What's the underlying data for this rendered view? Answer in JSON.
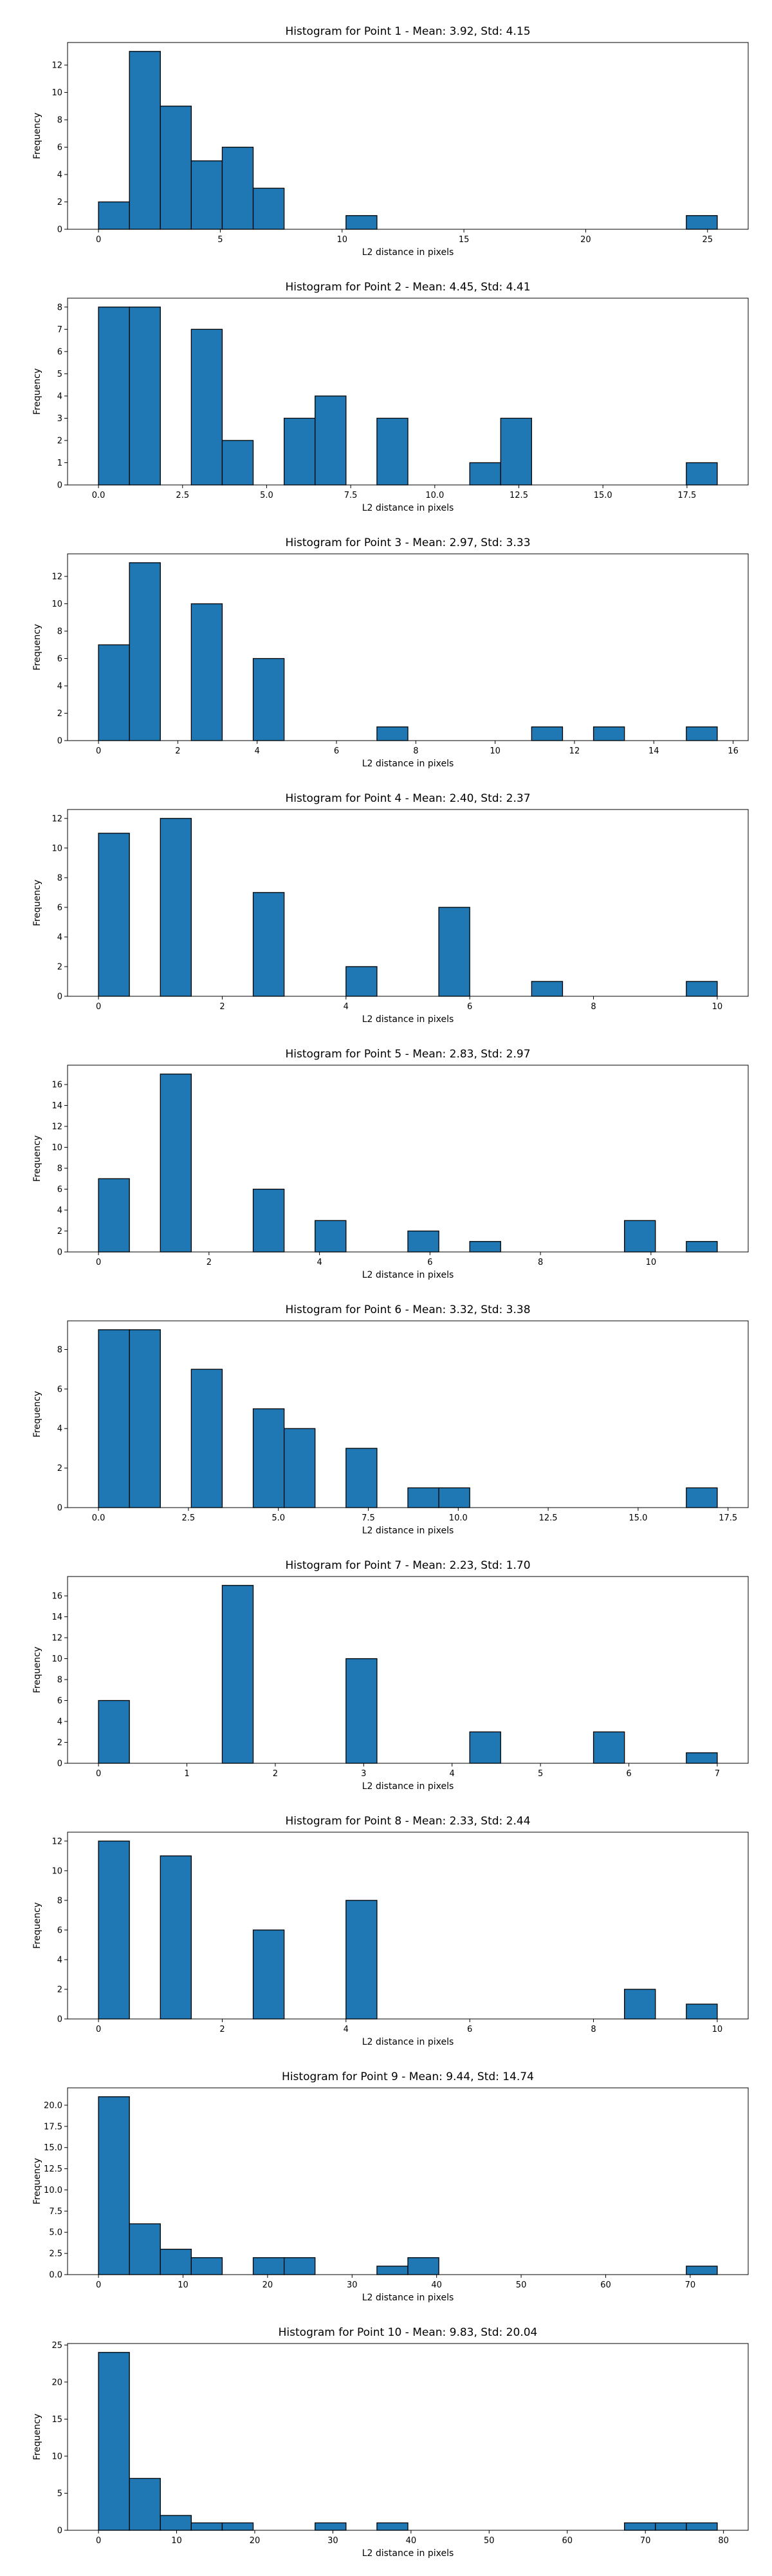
{
  "chart_data": [
    {
      "type": "bar",
      "title": "Histogram for Point 1 - Mean: 3.92, Std: 4.15",
      "xlabel": "L2 distance in pixels",
      "ylabel": "Frequency",
      "xlim": [
        -1.27,
        26.67
      ],
      "ylim": [
        0,
        13.65
      ],
      "xticks": [
        0,
        5,
        10,
        15,
        20,
        25
      ],
      "xtick_labels": [
        "0",
        "5",
        "10",
        "15",
        "20",
        "25"
      ],
      "yticks": [
        0,
        2,
        4,
        6,
        8,
        10,
        12
      ],
      "ytick_labels": [
        "0",
        "2",
        "4",
        "6",
        "8",
        "10",
        "12"
      ],
      "bins": [
        {
          "x0": 0.0,
          "x1": 1.27,
          "count": 2
        },
        {
          "x0": 1.27,
          "x1": 2.54,
          "count": 13
        },
        {
          "x0": 2.54,
          "x1": 3.81,
          "count": 9
        },
        {
          "x0": 3.81,
          "x1": 5.08,
          "count": 5
        },
        {
          "x0": 5.08,
          "x1": 6.35,
          "count": 6
        },
        {
          "x0": 6.35,
          "x1": 7.62,
          "count": 3
        },
        {
          "x0": 10.16,
          "x1": 11.43,
          "count": 1
        },
        {
          "x0": 24.13,
          "x1": 25.4,
          "count": 1
        }
      ]
    },
    {
      "type": "bar",
      "title": "Histogram for Point 2 - Mean: 4.45, Std: 4.41",
      "xlabel": "L2 distance in pixels",
      "ylabel": "Frequency",
      "xlim": [
        -0.92,
        19.32
      ],
      "ylim": [
        0,
        8.4
      ],
      "xticks": [
        0,
        2.5,
        5,
        7.5,
        10,
        12.5,
        15,
        17.5
      ],
      "xtick_labels": [
        "0.0",
        "2.5",
        "5.0",
        "7.5",
        "10.0",
        "12.5",
        "15.0",
        "17.5"
      ],
      "yticks": [
        0,
        1,
        2,
        3,
        4,
        5,
        6,
        7,
        8
      ],
      "ytick_labels": [
        "0",
        "1",
        "2",
        "3",
        "4",
        "5",
        "6",
        "7",
        "8"
      ],
      "bins": [
        {
          "x0": 0.0,
          "x1": 0.92,
          "count": 8
        },
        {
          "x0": 0.92,
          "x1": 1.84,
          "count": 8
        },
        {
          "x0": 2.76,
          "x1": 3.68,
          "count": 7
        },
        {
          "x0": 3.68,
          "x1": 4.6,
          "count": 2
        },
        {
          "x0": 5.52,
          "x1": 6.44,
          "count": 3
        },
        {
          "x0": 6.44,
          "x1": 7.36,
          "count": 4
        },
        {
          "x0": 8.28,
          "x1": 9.2,
          "count": 3
        },
        {
          "x0": 11.04,
          "x1": 11.96,
          "count": 1
        },
        {
          "x0": 11.96,
          "x1": 12.88,
          "count": 3
        },
        {
          "x0": 17.48,
          "x1": 18.4,
          "count": 1
        }
      ]
    },
    {
      "type": "bar",
      "title": "Histogram for Point 3 - Mean: 2.97, Std: 3.33",
      "xlabel": "L2 distance in pixels",
      "ylabel": "Frequency",
      "xlim": [
        -0.78,
        16.38
      ],
      "ylim": [
        0,
        13.65
      ],
      "xticks": [
        0,
        2,
        4,
        6,
        8,
        10,
        12,
        14,
        16
      ],
      "xtick_labels": [
        "0",
        "2",
        "4",
        "6",
        "8",
        "10",
        "12",
        "14",
        "16"
      ],
      "yticks": [
        0,
        2,
        4,
        6,
        8,
        10,
        12
      ],
      "ytick_labels": [
        "0",
        "2",
        "4",
        "6",
        "8",
        "10",
        "12"
      ],
      "bins": [
        {
          "x0": 0.0,
          "x1": 0.78,
          "count": 7
        },
        {
          "x0": 0.78,
          "x1": 1.56,
          "count": 13
        },
        {
          "x0": 2.34,
          "x1": 3.12,
          "count": 10
        },
        {
          "x0": 3.9,
          "x1": 4.68,
          "count": 6
        },
        {
          "x0": 7.02,
          "x1": 7.8,
          "count": 1
        },
        {
          "x0": 10.92,
          "x1": 11.7,
          "count": 1
        },
        {
          "x0": 12.48,
          "x1": 13.26,
          "count": 1
        },
        {
          "x0": 14.82,
          "x1": 15.6,
          "count": 1
        }
      ]
    },
    {
      "type": "bar",
      "title": "Histogram for Point 4 - Mean: 2.40, Std: 2.37",
      "xlabel": "L2 distance in pixels",
      "ylabel": "Frequency",
      "xlim": [
        -0.5,
        10.5
      ],
      "ylim": [
        0,
        12.6
      ],
      "xticks": [
        0,
        2,
        4,
        6,
        8,
        10
      ],
      "xtick_labels": [
        "0",
        "2",
        "4",
        "6",
        "8",
        "10"
      ],
      "yticks": [
        0,
        2,
        4,
        6,
        8,
        10,
        12
      ],
      "ytick_labels": [
        "0",
        "2",
        "4",
        "6",
        "8",
        "10",
        "12"
      ],
      "bins": [
        {
          "x0": 0.0,
          "x1": 0.5,
          "count": 11
        },
        {
          "x0": 1.0,
          "x1": 1.5,
          "count": 12
        },
        {
          "x0": 2.5,
          "x1": 3.0,
          "count": 7
        },
        {
          "x0": 4.0,
          "x1": 4.5,
          "count": 2
        },
        {
          "x0": 5.5,
          "x1": 6.0,
          "count": 6
        },
        {
          "x0": 7.0,
          "x1": 7.5,
          "count": 1
        },
        {
          "x0": 9.5,
          "x1": 10.0,
          "count": 1
        }
      ]
    },
    {
      "type": "bar",
      "title": "Histogram for Point 5 - Mean: 2.83, Std: 2.97",
      "xlabel": "L2 distance in pixels",
      "ylabel": "Frequency",
      "xlim": [
        -0.56,
        11.76
      ],
      "ylim": [
        0,
        17.85
      ],
      "xticks": [
        0,
        2,
        4,
        6,
        8,
        10
      ],
      "xtick_labels": [
        "0",
        "2",
        "4",
        "6",
        "8",
        "10"
      ],
      "yticks": [
        0,
        2,
        4,
        6,
        8,
        10,
        12,
        14,
        16
      ],
      "ytick_labels": [
        "0",
        "2",
        "4",
        "6",
        "8",
        "10",
        "12",
        "14",
        "16"
      ],
      "bins": [
        {
          "x0": 0.0,
          "x1": 0.56,
          "count": 7
        },
        {
          "x0": 1.12,
          "x1": 1.68,
          "count": 17
        },
        {
          "x0": 2.8,
          "x1": 3.36,
          "count": 6
        },
        {
          "x0": 3.92,
          "x1": 4.48,
          "count": 3
        },
        {
          "x0": 5.6,
          "x1": 6.16,
          "count": 2
        },
        {
          "x0": 6.72,
          "x1": 7.28,
          "count": 1
        },
        {
          "x0": 9.52,
          "x1": 10.08,
          "count": 3
        },
        {
          "x0": 10.64,
          "x1": 11.2,
          "count": 1
        }
      ]
    },
    {
      "type": "bar",
      "title": "Histogram for Point 6 - Mean: 3.32, Std: 3.38",
      "xlabel": "L2 distance in pixels",
      "ylabel": "Frequency",
      "xlim": [
        -0.86,
        18.06
      ],
      "ylim": [
        0,
        9.45
      ],
      "xticks": [
        0,
        2.5,
        5,
        7.5,
        10,
        12.5,
        15,
        17.5
      ],
      "xtick_labels": [
        "0.0",
        "2.5",
        "5.0",
        "7.5",
        "10.0",
        "12.5",
        "15.0",
        "17.5"
      ],
      "yticks": [
        0,
        2,
        4,
        6,
        8
      ],
      "ytick_labels": [
        "0",
        "2",
        "4",
        "6",
        "8"
      ],
      "bins": [
        {
          "x0": 0.0,
          "x1": 0.86,
          "count": 9
        },
        {
          "x0": 0.86,
          "x1": 1.72,
          "count": 9
        },
        {
          "x0": 2.58,
          "x1": 3.44,
          "count": 7
        },
        {
          "x0": 4.3,
          "x1": 5.16,
          "count": 5
        },
        {
          "x0": 5.16,
          "x1": 6.02,
          "count": 4
        },
        {
          "x0": 6.88,
          "x1": 7.74,
          "count": 3
        },
        {
          "x0": 8.6,
          "x1": 9.46,
          "count": 1
        },
        {
          "x0": 9.46,
          "x1": 10.32,
          "count": 1
        },
        {
          "x0": 16.34,
          "x1": 17.2,
          "count": 1
        }
      ]
    },
    {
      "type": "bar",
      "title": "Histogram for Point 7 - Mean: 2.23, Std: 1.70",
      "xlabel": "L2 distance in pixels",
      "ylabel": "Frequency",
      "xlim": [
        -0.35,
        7.35
      ],
      "ylim": [
        0,
        17.85
      ],
      "xticks": [
        0,
        1,
        2,
        3,
        4,
        5,
        6,
        7
      ],
      "xtick_labels": [
        "0",
        "1",
        "2",
        "3",
        "4",
        "5",
        "6",
        "7"
      ],
      "yticks": [
        0,
        2,
        4,
        6,
        8,
        10,
        12,
        14,
        16
      ],
      "ytick_labels": [
        "0",
        "2",
        "4",
        "6",
        "8",
        "10",
        "12",
        "14",
        "16"
      ],
      "bins": [
        {
          "x0": 0.0,
          "x1": 0.35,
          "count": 6
        },
        {
          "x0": 1.4,
          "x1": 1.75,
          "count": 17
        },
        {
          "x0": 2.8,
          "x1": 3.15,
          "count": 10
        },
        {
          "x0": 4.2,
          "x1": 4.55,
          "count": 3
        },
        {
          "x0": 5.6,
          "x1": 5.95,
          "count": 3
        },
        {
          "x0": 6.65,
          "x1": 7.0,
          "count": 1
        }
      ]
    },
    {
      "type": "bar",
      "title": "Histogram for Point 8 - Mean: 2.33, Std: 2.44",
      "xlabel": "L2 distance in pixels",
      "ylabel": "Frequency",
      "xlim": [
        -0.5,
        10.5
      ],
      "ylim": [
        0,
        12.6
      ],
      "xticks": [
        0,
        2,
        4,
        6,
        8,
        10
      ],
      "xtick_labels": [
        "0",
        "2",
        "4",
        "6",
        "8",
        "10"
      ],
      "yticks": [
        0,
        2,
        4,
        6,
        8,
        10,
        12
      ],
      "ytick_labels": [
        "0",
        "2",
        "4",
        "6",
        "8",
        "10",
        "12"
      ],
      "bins": [
        {
          "x0": 0.0,
          "x1": 0.5,
          "count": 12
        },
        {
          "x0": 1.0,
          "x1": 1.5,
          "count": 11
        },
        {
          "x0": 2.5,
          "x1": 3.0,
          "count": 6
        },
        {
          "x0": 4.0,
          "x1": 4.5,
          "count": 8
        },
        {
          "x0": 8.5,
          "x1": 9.0,
          "count": 2
        },
        {
          "x0": 9.5,
          "x1": 10.0,
          "count": 1
        }
      ]
    },
    {
      "type": "bar",
      "title": "Histogram for Point 9 - Mean: 9.44, Std: 14.74",
      "xlabel": "L2 distance in pixels",
      "ylabel": "Frequency",
      "xlim": [
        -3.66,
        76.86
      ],
      "ylim": [
        0,
        22.05
      ],
      "xticks": [
        0,
        10,
        20,
        30,
        40,
        50,
        60,
        70
      ],
      "xtick_labels": [
        "0",
        "10",
        "20",
        "30",
        "40",
        "50",
        "60",
        "70"
      ],
      "yticks": [
        0,
        2.5,
        5,
        7.5,
        10,
        12.5,
        15,
        17.5,
        20
      ],
      "ytick_labels": [
        "0.0",
        "2.5",
        "5.0",
        "7.5",
        "10.0",
        "12.5",
        "15.0",
        "17.5",
        "20.0"
      ],
      "bins": [
        {
          "x0": 0.0,
          "x1": 3.66,
          "count": 21
        },
        {
          "x0": 3.66,
          "x1": 7.32,
          "count": 6
        },
        {
          "x0": 7.32,
          "x1": 10.98,
          "count": 3
        },
        {
          "x0": 10.98,
          "x1": 14.64,
          "count": 2
        },
        {
          "x0": 18.3,
          "x1": 21.96,
          "count": 2
        },
        {
          "x0": 21.96,
          "x1": 25.62,
          "count": 2
        },
        {
          "x0": 32.94,
          "x1": 36.6,
          "count": 1
        },
        {
          "x0": 36.6,
          "x1": 40.26,
          "count": 2
        },
        {
          "x0": 69.54,
          "x1": 73.2,
          "count": 1
        }
      ]
    },
    {
      "type": "bar",
      "title": "Histogram for Point 10 - Mean: 9.83, Std: 20.04",
      "xlabel": "L2 distance in pixels",
      "ylabel": "Frequency",
      "xlim": [
        -3.96,
        83.16
      ],
      "ylim": [
        0,
        25.2
      ],
      "xticks": [
        0,
        10,
        20,
        30,
        40,
        50,
        60,
        70,
        80
      ],
      "xtick_labels": [
        "0",
        "10",
        "20",
        "30",
        "40",
        "50",
        "60",
        "70",
        "80"
      ],
      "yticks": [
        0,
        5,
        10,
        15,
        20,
        25
      ],
      "ytick_labels": [
        "0",
        "5",
        "10",
        "15",
        "20",
        "25"
      ],
      "bins": [
        {
          "x0": 0.0,
          "x1": 3.96,
          "count": 24
        },
        {
          "x0": 3.96,
          "x1": 7.92,
          "count": 7
        },
        {
          "x0": 7.92,
          "x1": 11.88,
          "count": 2
        },
        {
          "x0": 11.88,
          "x1": 15.84,
          "count": 1
        },
        {
          "x0": 15.84,
          "x1": 19.8,
          "count": 1
        },
        {
          "x0": 27.72,
          "x1": 31.68,
          "count": 1
        },
        {
          "x0": 35.64,
          "x1": 39.6,
          "count": 1
        },
        {
          "x0": 67.32,
          "x1": 71.28,
          "count": 1
        },
        {
          "x0": 71.28,
          "x1": 75.24,
          "count": 1
        },
        {
          "x0": 75.24,
          "x1": 79.2,
          "count": 1
        }
      ]
    }
  ],
  "style": {
    "bar_color": "#1f77b4",
    "edge_color": "#000000",
    "background": "#ffffff"
  }
}
